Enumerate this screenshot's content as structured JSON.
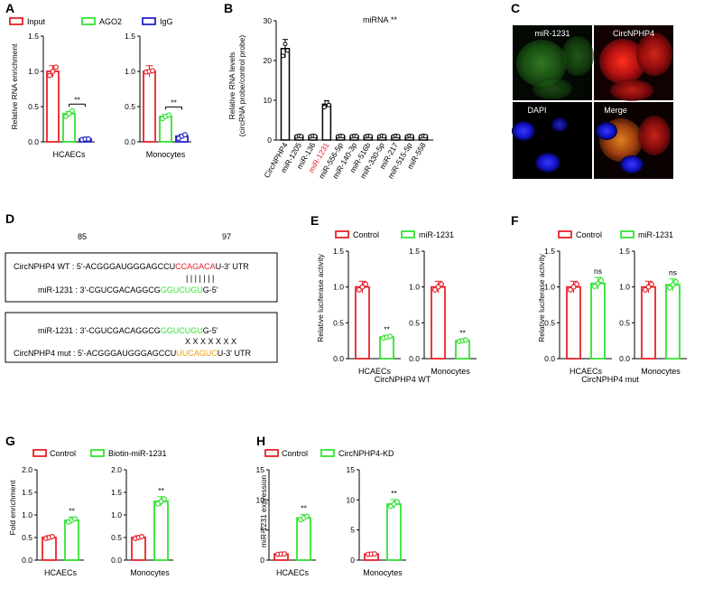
{
  "panel_letters": [
    "A",
    "B",
    "C",
    "D",
    "E",
    "F",
    "G",
    "H"
  ],
  "colors": {
    "red": "#e8232a",
    "green": "#33e433",
    "blue": "#2424c8",
    "black": "#000000",
    "orange": "#f0a014"
  },
  "panelA": {
    "legend": [
      {
        "label": "Input",
        "color": "#e8232a"
      },
      {
        "label": "AGO2",
        "color": "#33e433"
      },
      {
        "label": "IgG",
        "color": "#2424c8"
      }
    ],
    "ylabel": "Relative RNA enrichment",
    "sig": "**"
  },
  "panelB": {
    "title": "miRNA",
    "title_sig": "**",
    "ylabel_line1": "Relative RNA levels",
    "ylabel_line2": "(circRNA probe/control probe)",
    "highlight": "miR-1231"
  },
  "panelC": {
    "images": [
      {
        "label": "miR-1231",
        "tint": "green"
      },
      {
        "label": "CircNPHP4",
        "tint": "red"
      },
      {
        "label": "DAPI",
        "tint": "blue"
      },
      {
        "label": "Merge",
        "tint": "merge"
      }
    ]
  },
  "panelD": {
    "pos_left": "85",
    "pos_right": "97",
    "box1": {
      "wt_label": "CircNPHP4 WT : 5'-",
      "wt_seq_a": "ACGGGAUGGGAGCCU",
      "wt_seq_b": "CCAGACA",
      "wt_seq_c": "U-3' UTR",
      "pairs": "| | | | | | |",
      "mir_label": "miR-1231 : 3'-",
      "mir_seq_a": "CGUCGACAGGCG",
      "mir_seq_b": "GGUCUGU",
      "mir_seq_c": "G-5'"
    },
    "box2": {
      "mir_label": "miR-1231 : 3'-",
      "mir_seq_a": "CGUCGACAGGCG",
      "mir_seq_b": "GGUCUGU",
      "mir_seq_c": "G-5'",
      "mismatch": "X X X X X X X",
      "mut_label": "CircNPHP4 mut : 5'-",
      "mut_seq_a": "ACGGGAUGGGAGCCU",
      "mut_seq_b": "UUCAGUC",
      "mut_seq_c": "U-3' UTR"
    }
  },
  "panelE": {
    "legend": [
      {
        "label": "Control",
        "color": "#e8232a"
      },
      {
        "label": "miR-1231",
        "color": "#33e433"
      }
    ],
    "ylabel": "Relative luciferase activity",
    "caption": "CircNPHP4 WT",
    "sig": "**"
  },
  "panelF": {
    "legend": [
      {
        "label": "Control",
        "color": "#e8232a"
      },
      {
        "label": "miR-1231",
        "color": "#33e433"
      }
    ],
    "ylabel": "Relative luciferase activity",
    "caption": "CircNPHP4 mut",
    "sig": "ns"
  },
  "panelG": {
    "legend": [
      {
        "label": "Control",
        "color": "#e8232a"
      },
      {
        "label": "Biotin-miR-1231",
        "color": "#33e433"
      }
    ],
    "ylabel": "Fold enrichment",
    "sig": "**"
  },
  "panelH": {
    "legend": [
      {
        "label": "Control",
        "color": "#e8232a"
      },
      {
        "label": "CircNPHP4-KD",
        "color": "#33e433"
      }
    ],
    "ylabel": "miR-1231 expression",
    "sig": "**"
  },
  "chart_data": [
    {
      "panel": "A",
      "type": "bar",
      "ylabel": "Relative RNA enrichment",
      "groups": [
        "HCAECs",
        "Monocytes"
      ],
      "series": [
        {
          "name": "Input",
          "values": [
            1.0,
            1.0
          ],
          "points": [
            [
              0.94,
              1.0,
              1.06
            ],
            [
              0.99,
              1.0,
              1.01
            ]
          ]
        },
        {
          "name": "AGO2",
          "values": [
            0.4,
            0.36
          ],
          "points": [
            [
              0.36,
              0.4,
              0.44
            ],
            [
              0.33,
              0.36,
              0.38
            ]
          ]
        },
        {
          "name": "IgG",
          "values": [
            0.04,
            0.08
          ],
          "points": [
            [
              0.03,
              0.04,
              0.04
            ],
            [
              0.05,
              0.08,
              0.1
            ]
          ]
        }
      ],
      "yticks": [
        0.0,
        0.5,
        1.0,
        1.5
      ],
      "ylim": [
        0,
        1.5
      ]
    },
    {
      "panel": "B",
      "type": "bar",
      "title": "miRNA",
      "ylabel": "Relative RNA levels (circRNA probe/control probe)",
      "categories": [
        "CircNPHP4",
        "miR-1205",
        "miR-136",
        "miR-1231",
        "miR-556-5p",
        "miR-140-3p",
        "miR-516b",
        "miR-330-5p",
        "miR-217",
        "miR-515-5p",
        "miR-558"
      ],
      "values": [
        23,
        1,
        1,
        9,
        1,
        1,
        1,
        1,
        1,
        1,
        1
      ],
      "yticks": [
        0,
        10,
        20,
        30
      ],
      "ylim": [
        0,
        30
      ]
    },
    {
      "panel": "E",
      "type": "bar",
      "ylabel": "Relative luciferase activity",
      "groups": [
        "HCAECs",
        "Monocytes"
      ],
      "series": [
        {
          "name": "Control",
          "values": [
            1.0,
            1.0
          ]
        },
        {
          "name": "miR-1231",
          "values": [
            0.3,
            0.25
          ]
        }
      ],
      "yticks": [
        0.0,
        0.5,
        1.0,
        1.5
      ],
      "ylim": [
        0,
        1.5
      ]
    },
    {
      "panel": "F",
      "type": "bar",
      "ylabel": "Relative luciferase activity",
      "groups": [
        "HCAECs",
        "Monocytes"
      ],
      "series": [
        {
          "name": "Control",
          "values": [
            1.0,
            1.0
          ]
        },
        {
          "name": "miR-1231",
          "values": [
            1.05,
            1.03
          ]
        }
      ],
      "yticks": [
        0.0,
        0.5,
        1.0,
        1.5
      ],
      "ylim": [
        0,
        1.5
      ]
    },
    {
      "panel": "G",
      "type": "bar",
      "ylabel": "Fold enrichment",
      "groups": [
        "HCAECs",
        "Monocytes"
      ],
      "series": [
        {
          "name": "Control",
          "values": [
            0.5,
            0.5
          ]
        },
        {
          "name": "Biotin-miR-1231",
          "values": [
            0.88,
            1.3
          ]
        }
      ],
      "yticks": [
        0.0,
        0.5,
        1.0,
        1.5,
        2.0
      ],
      "ylim": [
        0,
        2.0
      ]
    },
    {
      "panel": "H",
      "type": "bar",
      "ylabel": "miR-1231 expression",
      "groups": [
        "HCAECs",
        "Monocytes"
      ],
      "series": [
        {
          "name": "Control",
          "values": [
            1.0,
            1.0
          ]
        },
        {
          "name": "CircNPHP4-KD",
          "values": [
            7.0,
            9.3
          ]
        }
      ],
      "yticks": [
        0,
        5,
        10,
        15
      ],
      "ylim": [
        0,
        15
      ]
    }
  ]
}
